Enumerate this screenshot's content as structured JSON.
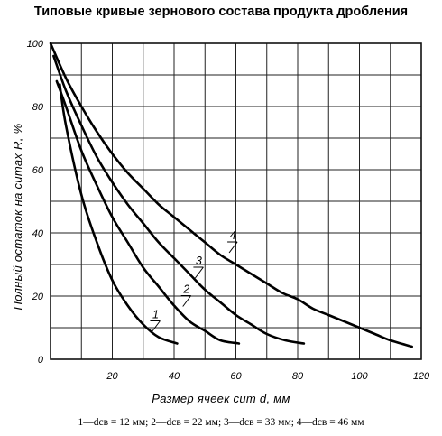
{
  "chart_data": {
    "type": "line",
    "title": "Типовые кривые зернового состава продукта дробления",
    "xlabel": "Размер ячеек сит d, мм",
    "ylabel": "Полный остаток на ситах R, %",
    "xlim": [
      0,
      120
    ],
    "ylim": [
      0,
      100
    ],
    "x_ticks": [
      "20",
      "40",
      "60",
      "80",
      "100",
      "120"
    ],
    "y_ticks": [
      "0",
      "20",
      "40",
      "60",
      "80",
      "100"
    ],
    "grid": true,
    "series": [
      {
        "name": "1",
        "x": [
          3,
          5,
          10,
          15,
          20,
          25,
          30,
          35,
          41
        ],
        "y": [
          87,
          74,
          52,
          37,
          25,
          17,
          11,
          7,
          5
        ]
      },
      {
        "name": "2",
        "x": [
          2,
          5,
          10,
          15,
          20,
          25,
          30,
          35,
          40,
          45,
          50,
          55,
          61
        ],
        "y": [
          88,
          80,
          66,
          55,
          45,
          37,
          29,
          23,
          17,
          12,
          9,
          6,
          5
        ]
      },
      {
        "name": "3",
        "x": [
          1,
          5,
          10,
          15,
          20,
          25,
          30,
          35,
          40,
          45,
          50,
          55,
          60,
          65,
          70,
          76,
          82
        ],
        "y": [
          96,
          85,
          74,
          64,
          56,
          49,
          43,
          37,
          32,
          27,
          22,
          18,
          14,
          11,
          8,
          6,
          5
        ]
      },
      {
        "name": "4",
        "x": [
          0,
          5,
          10,
          15,
          20,
          25,
          30,
          35,
          40,
          45,
          50,
          55,
          60,
          65,
          70,
          75,
          80,
          85,
          90,
          95,
          100,
          105,
          110,
          117
        ],
        "y": [
          100,
          89,
          80,
          72,
          65,
          59,
          54,
          49,
          45,
          41,
          37,
          33,
          30,
          27,
          24,
          21,
          19,
          16,
          14,
          12,
          10,
          8,
          6,
          4
        ]
      }
    ],
    "legend": "1—dсв = 12 мм; 2—dсв = 22 мм; 3—dсв = 33 мм; 4—dсв = 46 мм"
  }
}
